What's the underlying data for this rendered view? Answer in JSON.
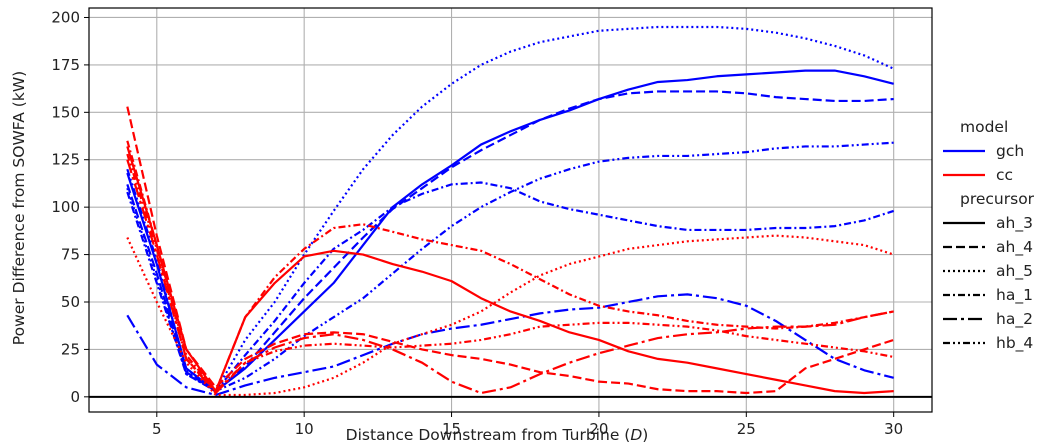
{
  "chart_data": {
    "type": "line",
    "xlabel": "Distance Downstream from Turbine (",
    "xlabel_symbol": "D",
    "xlabel_close": ")",
    "ylabel": "Power Difference from SOWFA (kW)",
    "xlim": [
      2.7,
      31.3
    ],
    "ylim": [
      -8,
      205
    ],
    "xticks": [
      5,
      10,
      15,
      20,
      25,
      30
    ],
    "yticks": [
      0,
      25,
      50,
      75,
      100,
      125,
      150,
      175,
      200
    ],
    "grid": true,
    "zero_line": 0,
    "legend_placement": "right-outside",
    "legend": {
      "model_title": "model",
      "models": [
        {
          "name": "gch",
          "color": "#0000ff"
        },
        {
          "name": "cc",
          "color": "#ff0000"
        }
      ],
      "precursor_title": "precursor",
      "precursors": [
        {
          "name": "ah_3",
          "dash": "solid"
        },
        {
          "name": "ah_4",
          "dash": "dashed"
        },
        {
          "name": "ah_5",
          "dash": "dotted"
        },
        {
          "name": "ha_1",
          "dash": "dashdot"
        },
        {
          "name": "ha_2",
          "dash": "longdashdot"
        },
        {
          "name": "hb_4",
          "dash": "dashdotdot"
        }
      ]
    },
    "series": [
      {
        "model": "gch",
        "precursor": "ah_3",
        "color": "#0000ff",
        "x": [
          4,
          5,
          6,
          7,
          8,
          9,
          10,
          11,
          12,
          13,
          14,
          15,
          16,
          17,
          18,
          19,
          20,
          21,
          22,
          23,
          24,
          25,
          26,
          27,
          28,
          29,
          30
        ],
        "y": [
          118,
          70,
          15,
          3,
          15,
          30,
          45,
          60,
          80,
          100,
          112,
          122,
          133,
          140,
          146,
          151,
          157,
          162,
          166,
          167,
          169,
          170,
          171,
          172,
          172,
          169,
          165
        ]
      },
      {
        "model": "gch",
        "precursor": "ah_4",
        "color": "#0000ff",
        "x": [
          4,
          5,
          6,
          7,
          8,
          9,
          10,
          11,
          12,
          13,
          14,
          15,
          16,
          17,
          18,
          19,
          20,
          21,
          22,
          23,
          24,
          25,
          26,
          27,
          28,
          29,
          30
        ],
        "y": [
          112,
          65,
          13,
          3,
          16,
          34,
          52,
          68,
          84,
          99,
          110,
          121,
          130,
          138,
          146,
          152,
          157,
          160,
          161,
          161,
          161,
          160,
          158,
          157,
          156,
          156,
          157
        ]
      },
      {
        "model": "gch",
        "precursor": "ah_5",
        "color": "#0000ff",
        "x": [
          4,
          5,
          6,
          7,
          8,
          9,
          10,
          11,
          12,
          13,
          14,
          15,
          16,
          17,
          18,
          19,
          20,
          21,
          22,
          23,
          24,
          25,
          26,
          27,
          28,
          29,
          30
        ],
        "y": [
          110,
          62,
          12,
          3,
          30,
          50,
          75,
          98,
          120,
          138,
          153,
          165,
          175,
          182,
          187,
          190,
          193,
          194,
          195,
          195,
          195,
          194,
          192,
          189,
          185,
          180,
          173
        ]
      },
      {
        "model": "gch",
        "precursor": "ha_1",
        "color": "#0000ff",
        "x": [
          4,
          5,
          6,
          7,
          8,
          9,
          10,
          11,
          12,
          13,
          14,
          15,
          16,
          17,
          18,
          19,
          20,
          21,
          22,
          23,
          24,
          25,
          26,
          27,
          28,
          29,
          30
        ],
        "y": [
          108,
          60,
          12,
          3,
          22,
          40,
          60,
          78,
          88,
          100,
          107,
          112,
          113,
          110,
          103,
          99,
          96,
          93,
          90,
          88,
          88,
          88,
          89,
          89,
          90,
          93,
          98
        ]
      },
      {
        "model": "gch",
        "precursor": "ha_2",
        "color": "#0000ff",
        "x": [
          4,
          5,
          6,
          7,
          8,
          9,
          10,
          11,
          12,
          13,
          14,
          15,
          16,
          17,
          18,
          19,
          20,
          21,
          22,
          23,
          24,
          25,
          26,
          27,
          28,
          29,
          30
        ],
        "y": [
          43,
          17,
          5,
          1,
          6,
          10,
          13,
          16,
          22,
          28,
          33,
          36,
          38,
          41,
          44,
          46,
          47,
          50,
          53,
          54,
          52,
          48,
          40,
          30,
          20,
          14,
          10
        ]
      },
      {
        "model": "gch",
        "precursor": "hb_4",
        "color": "#0000ff",
        "x": [
          4,
          5,
          6,
          7,
          8,
          9,
          10,
          11,
          12,
          13,
          14,
          15,
          16,
          17,
          18,
          19,
          20,
          21,
          22,
          23,
          24,
          25,
          26,
          27,
          28,
          29,
          30
        ],
        "y": [
          120,
          72,
          14,
          3,
          10,
          20,
          32,
          42,
          52,
          65,
          78,
          90,
          100,
          108,
          115,
          120,
          124,
          126,
          127,
          127,
          128,
          129,
          131,
          132,
          132,
          133,
          134
        ]
      },
      {
        "model": "cc",
        "precursor": "ah_3",
        "color": "#ff0000",
        "x": [
          4,
          5,
          6,
          7,
          8,
          9,
          10,
          11,
          12,
          13,
          14,
          15,
          16,
          17,
          18,
          19,
          20,
          21,
          22,
          23,
          24,
          25,
          26,
          27,
          28,
          29,
          30
        ],
        "y": [
          132,
          80,
          25,
          3,
          42,
          60,
          74,
          77,
          75,
          70,
          66,
          61,
          52,
          45,
          40,
          34,
          30,
          24,
          20,
          18,
          15,
          12,
          9,
          6,
          3,
          2,
          3
        ]
      },
      {
        "model": "cc",
        "precursor": "ah_4",
        "color": "#ff0000",
        "x": [
          4,
          5,
          6,
          7,
          8,
          9,
          10,
          11,
          12,
          13,
          14,
          15,
          16,
          17,
          18,
          19,
          20,
          21,
          22,
          23,
          24,
          25,
          26,
          27,
          28,
          29,
          30
        ],
        "y": [
          153,
          85,
          25,
          5,
          20,
          28,
          33,
          34,
          33,
          29,
          25,
          22,
          20,
          17,
          13,
          11,
          8,
          7,
          4,
          3,
          3,
          2,
          3,
          15,
          20,
          25,
          30
        ]
      },
      {
        "model": "cc",
        "precursor": "ah_5",
        "color": "#ff0000",
        "x": [
          4,
          5,
          6,
          7,
          8,
          9,
          10,
          11,
          12,
          13,
          14,
          15,
          16,
          17,
          18,
          19,
          20,
          21,
          22,
          23,
          24,
          25,
          26,
          27,
          28,
          29,
          30
        ],
        "y": [
          84,
          50,
          18,
          1,
          1,
          2,
          5,
          10,
          18,
          28,
          33,
          38,
          45,
          55,
          64,
          70,
          74,
          78,
          80,
          82,
          83,
          84,
          85,
          84,
          82,
          80,
          75
        ]
      },
      {
        "model": "cc",
        "precursor": "ha_1",
        "color": "#ff0000",
        "x": [
          4,
          5,
          6,
          7,
          8,
          9,
          10,
          11,
          12,
          13,
          14,
          15,
          16,
          17,
          18,
          19,
          20,
          21,
          22,
          23,
          24,
          25,
          26,
          27,
          28,
          29,
          30
        ],
        "y": [
          135,
          80,
          22,
          3,
          42,
          63,
          78,
          89,
          91,
          87,
          83,
          80,
          77,
          70,
          62,
          54,
          48,
          45,
          43,
          40,
          38,
          37,
          36,
          37,
          39,
          42,
          45
        ]
      },
      {
        "model": "cc",
        "precursor": "ha_2",
        "color": "#ff0000",
        "x": [
          4,
          5,
          6,
          7,
          8,
          9,
          10,
          11,
          12,
          13,
          14,
          15,
          16,
          17,
          18,
          19,
          20,
          21,
          22,
          23,
          24,
          25,
          26,
          27,
          28,
          29,
          30
        ],
        "y": [
          125,
          75,
          20,
          2,
          18,
          26,
          31,
          33,
          30,
          25,
          18,
          8,
          2,
          5,
          12,
          18,
          23,
          27,
          31,
          33,
          34,
          36,
          37,
          37,
          38,
          42,
          45
        ]
      },
      {
        "model": "cc",
        "precursor": "hb_4",
        "color": "#ff0000",
        "x": [
          4,
          5,
          6,
          7,
          8,
          9,
          10,
          11,
          12,
          13,
          14,
          15,
          16,
          17,
          18,
          19,
          20,
          21,
          22,
          23,
          24,
          25,
          26,
          27,
          28,
          29,
          30
        ],
        "y": [
          128,
          78,
          20,
          3,
          18,
          24,
          27,
          28,
          27,
          26,
          27,
          28,
          30,
          33,
          37,
          38,
          39,
          39,
          38,
          37,
          35,
          32,
          30,
          28,
          26,
          24,
          21
        ]
      }
    ]
  }
}
